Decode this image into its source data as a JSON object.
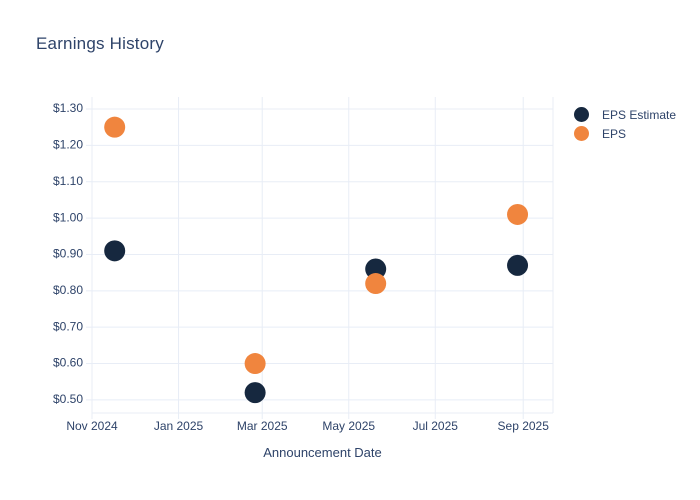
{
  "chart_data": {
    "type": "scatter",
    "title": "Earnings History",
    "xlabel": "Announcement Date",
    "ylabel": "",
    "grid": true,
    "legend_position": "right",
    "x_range": [
      "2024-11-01",
      "2025-09-22"
    ],
    "y_range": [
      0.464,
      1.333
    ],
    "x_ticks": [
      {
        "date": "2024-11-01",
        "label": "Nov 2024"
      },
      {
        "date": "2025-01-01",
        "label": "Jan 2025"
      },
      {
        "date": "2025-03-01",
        "label": "Mar 2025"
      },
      {
        "date": "2025-05-01",
        "label": "May 2025"
      },
      {
        "date": "2025-07-01",
        "label": "Jul 2025"
      },
      {
        "date": "2025-09-01",
        "label": "Sep 2025"
      }
    ],
    "y_ticks": [
      {
        "value": 1.3,
        "label": "$1.30"
      },
      {
        "value": 1.2,
        "label": "$1.20"
      },
      {
        "value": 1.1,
        "label": "$1.10"
      },
      {
        "value": 1.0,
        "label": "$1.00"
      },
      {
        "value": 0.9,
        "label": "$0.90"
      },
      {
        "value": 0.8,
        "label": "$0.80"
      },
      {
        "value": 0.7,
        "label": "$0.70"
      },
      {
        "value": 0.6,
        "label": "$0.60"
      },
      {
        "value": 0.5,
        "label": "$0.50"
      }
    ],
    "colors": {
      "eps_estimate": "#16283f",
      "eps": "#f0853e",
      "text": "#2e4369",
      "grid": "#e8edf6",
      "background": "#ffffff"
    },
    "series": [
      {
        "name": "EPS Estimate",
        "color": "#16283f",
        "points": [
          {
            "date": "2024-11-17",
            "value": 0.91
          },
          {
            "date": "2025-02-24",
            "value": 0.52
          },
          {
            "date": "2025-05-20",
            "value": 0.86
          },
          {
            "date": "2025-08-28",
            "value": 0.87
          }
        ]
      },
      {
        "name": "EPS",
        "color": "#f0853e",
        "points": [
          {
            "date": "2024-11-17",
            "value": 1.25
          },
          {
            "date": "2025-02-24",
            "value": 0.6
          },
          {
            "date": "2025-05-20",
            "value": 0.82
          },
          {
            "date": "2025-08-28",
            "value": 1.01
          }
        ]
      }
    ]
  }
}
